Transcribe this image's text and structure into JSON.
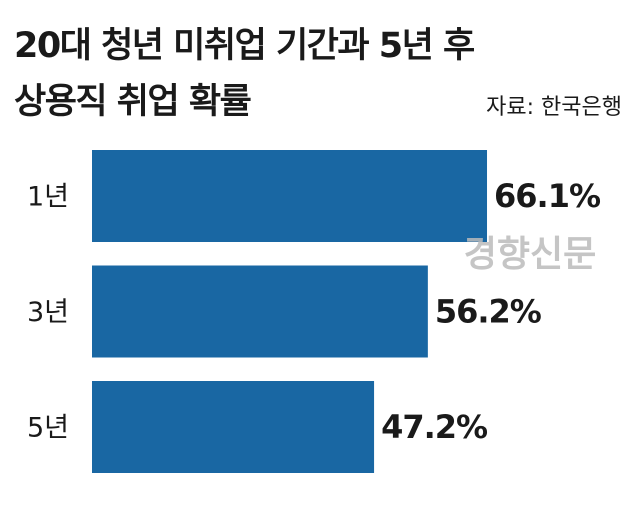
{
  "chart_data": {
    "type": "bar",
    "orientation": "horizontal",
    "title": [
      "20대 청년 미취업 기간과 5년 후",
      "상용직 취업 확률"
    ],
    "source": "자료: 한국은행",
    "watermark": "경향신문",
    "categories": [
      "1년",
      "3년",
      "5년"
    ],
    "values": [
      66.1,
      56.2,
      47.2
    ],
    "value_labels": [
      "66.1%",
      "56.2%",
      "47.2%"
    ],
    "color": "#1967a3"
  }
}
